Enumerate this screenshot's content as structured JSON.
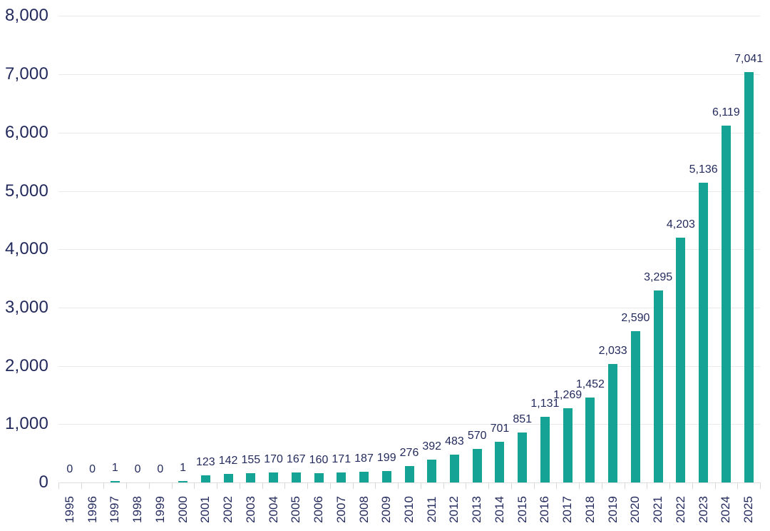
{
  "chart_data": {
    "type": "bar",
    "title": "",
    "xlabel": "",
    "ylabel": "",
    "categories": [
      "1995",
      "1996",
      "1997",
      "1998",
      "1999",
      "2000",
      "2001",
      "2002",
      "2003",
      "2004",
      "2005",
      "2006",
      "2007",
      "2008",
      "2009",
      "2010",
      "2011",
      "2012",
      "2013",
      "2014",
      "2015",
      "2016",
      "2017",
      "2018",
      "2019",
      "2020",
      "2021",
      "2022",
      "2023",
      "2024",
      "2025"
    ],
    "values": [
      0,
      0,
      1,
      0,
      0,
      1,
      123,
      142,
      155,
      170,
      167,
      160,
      171,
      187,
      199,
      276,
      392,
      483,
      570,
      701,
      851,
      1131,
      1269,
      1452,
      2033,
      2590,
      3295,
      4203,
      5136,
      6119,
      7041
    ],
    "value_labels": [
      "0",
      "0",
      "1",
      "0",
      "0",
      "1",
      "123",
      "142",
      "155",
      "170",
      "167",
      "160",
      "171",
      "187",
      "199",
      "276",
      "392",
      "483",
      "570",
      "701",
      "851",
      "1,131",
      "1,269",
      "1,452",
      "2,033",
      "2,590",
      "3,295",
      "4,203",
      "5,136",
      "6,119",
      "7,041"
    ],
    "ylim": [
      0,
      8000
    ],
    "ytick_interval": 1000,
    "ytick_labels": [
      "0",
      "1,000",
      "2,000",
      "3,000",
      "4,000",
      "5,000",
      "6,000",
      "7,000",
      "8,000"
    ],
    "grid": "horizontal-only",
    "legend_position": "none",
    "colors": {
      "bar": "#14a394",
      "text": "#232a5c",
      "gridline": "#e9e9e9",
      "axis_line": "#dedede",
      "tick": "#d9d9d9",
      "background": "#ffffff"
    }
  }
}
